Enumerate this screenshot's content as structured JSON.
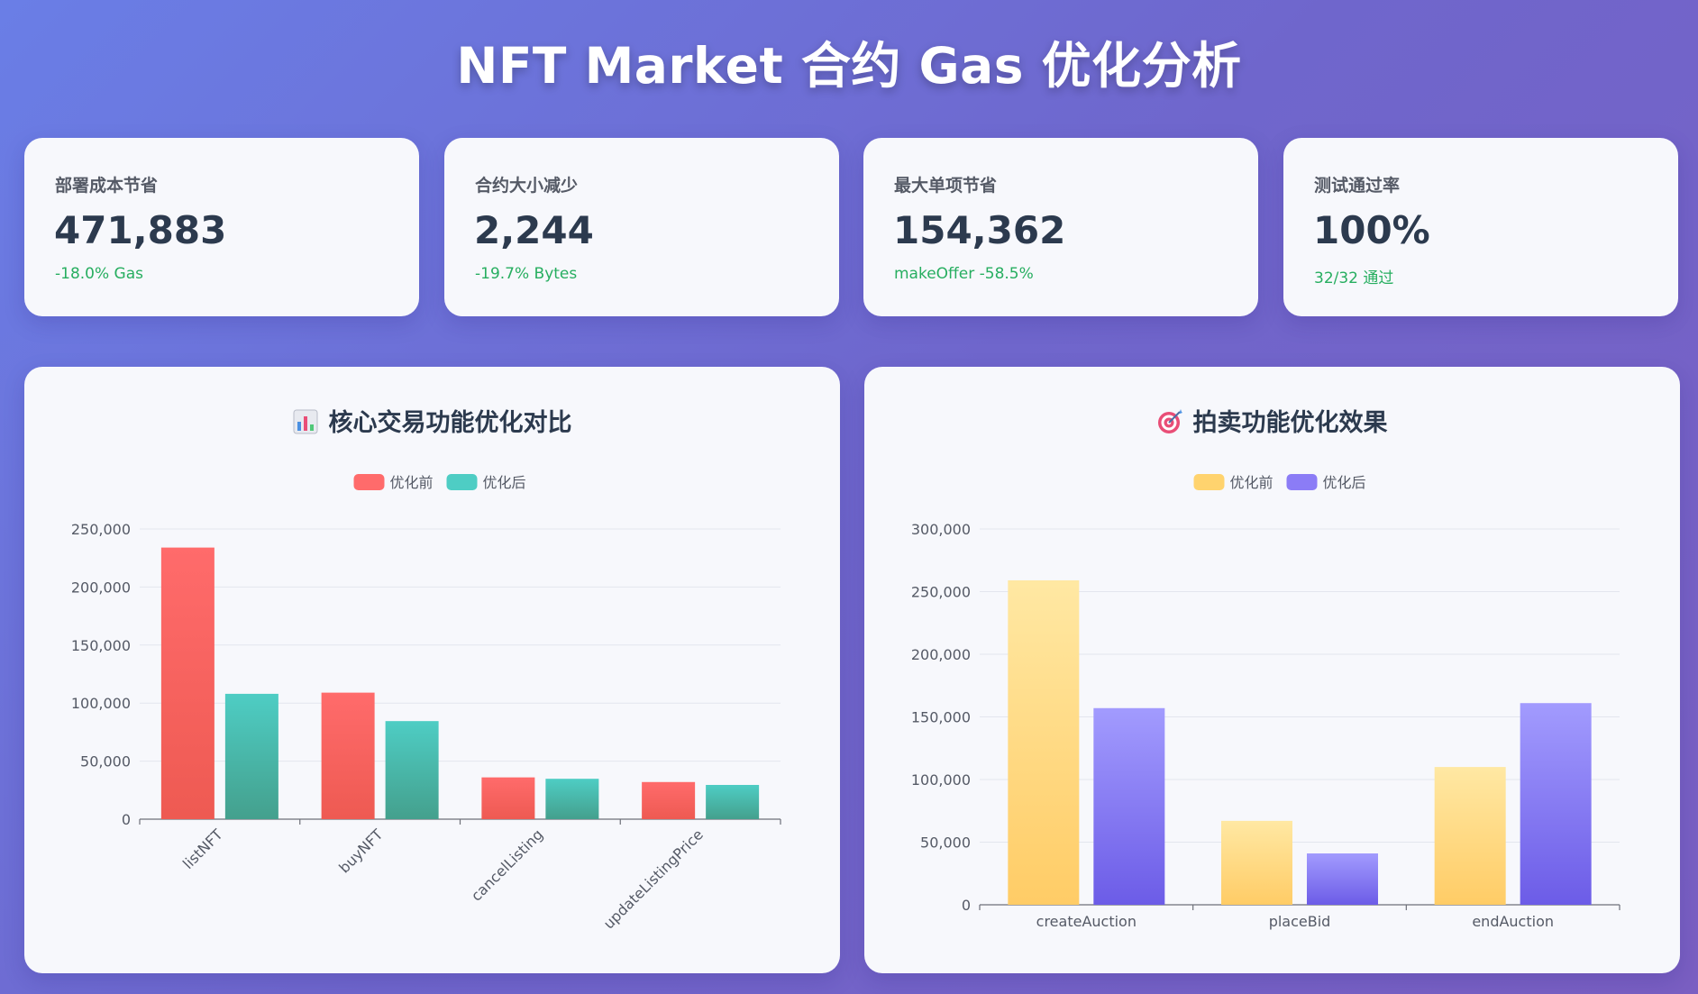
{
  "page": {
    "title": "NFT Market 合约 Gas 优化分析"
  },
  "stats": [
    {
      "label": "部署成本节省",
      "value": "471,883",
      "sub": "-18.0% Gas"
    },
    {
      "label": "合约大小减少",
      "value": "2,244",
      "sub": "-19.7% Bytes"
    },
    {
      "label": "最大单项节省",
      "value": "154,362",
      "sub": "makeOffer -58.5%"
    },
    {
      "label": "测试通过率",
      "value": "100%",
      "sub": "32/32 通过"
    }
  ],
  "colors": {
    "before_core": "#ff6b6b",
    "after_core": "#4ecdc4",
    "before_auction": "#ffd36e",
    "after_auction": "#8b7cf6",
    "positive": "#27ae60"
  },
  "chart_data": [
    {
      "type": "bar",
      "title": "核心交易功能优化对比",
      "icon": "bar-chart-icon",
      "categories": [
        "listNFT",
        "buyNFT",
        "cancelListing",
        "updateListingPrice"
      ],
      "series": [
        {
          "name": "优化前",
          "values": [
            234000,
            109000,
            36000,
            32000
          ]
        },
        {
          "name": "优化后",
          "values": [
            108000,
            84500,
            34800,
            29500
          ]
        }
      ],
      "ylim": [
        0,
        250000
      ],
      "yticks": [
        0,
        50000,
        100000,
        150000,
        200000,
        250000
      ],
      "ytick_labels": [
        "0",
        "50,000",
        "100,000",
        "150,000",
        "200,000",
        "250,000"
      ],
      "legend": "top-center",
      "grid": true
    },
    {
      "type": "bar",
      "title": "拍卖功能优化效果",
      "icon": "target-icon",
      "categories": [
        "createAuction",
        "placeBid",
        "endAuction"
      ],
      "series": [
        {
          "name": "优化前",
          "values": [
            259000,
            67000,
            110000
          ]
        },
        {
          "name": "优化后",
          "values": [
            157000,
            41000,
            161000
          ]
        }
      ],
      "ylim": [
        0,
        300000
      ],
      "yticks": [
        0,
        50000,
        100000,
        150000,
        200000,
        250000,
        300000
      ],
      "ytick_labels": [
        "0",
        "50,000",
        "100,000",
        "150,000",
        "200,000",
        "250,000",
        "300,000"
      ],
      "legend": "top-center",
      "grid": true
    }
  ]
}
